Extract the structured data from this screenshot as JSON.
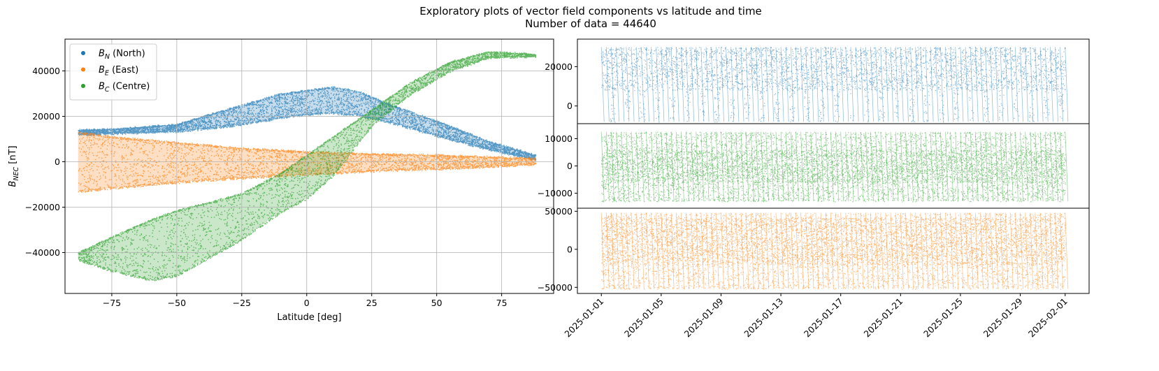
{
  "figure": {
    "title": "Exploratory plots of vector field components vs latitude and time",
    "subtitle": "Number of data = 44640"
  },
  "colors": {
    "north": "#1f77b4",
    "east": "#ff7f0e",
    "centre": "#2ca02c",
    "grid": "#b0b0b0"
  },
  "chart_data": [
    {
      "type": "scatter",
      "xlabel": "Latitude [deg]",
      "ylabel_main": "B",
      "ylabel_sub": "NEC",
      "ylabel_unit": " [nT]",
      "xlim": [
        -93,
        95
      ],
      "ylim": [
        -58000,
        54000
      ],
      "grid": true,
      "legend_position": "top-left",
      "xticks": [
        -75,
        -50,
        -25,
        0,
        25,
        50,
        75
      ],
      "xtick_labels": [
        "−75",
        "−50",
        "−25",
        "0",
        "25",
        "50",
        "75"
      ],
      "yticks": [
        -40000,
        -20000,
        0,
        20000,
        40000
      ],
      "ytick_labels": [
        "−40000",
        "−20000",
        "0",
        "20000",
        "40000"
      ],
      "series": [
        {
          "key": "north",
          "legend_main": "B",
          "legend_sub": "N",
          "legend_text": " (North)",
          "upper": [
            [
              -88,
              14000
            ],
            [
              -75,
              14500
            ],
            [
              -50,
              16500
            ],
            [
              -40,
              20000
            ],
            [
              -25,
              25000
            ],
            [
              -10,
              30000
            ],
            [
              0,
              31500
            ],
            [
              10,
              33000
            ],
            [
              20,
              31000
            ],
            [
              30,
              26000
            ],
            [
              50,
              18000
            ],
            [
              70,
              9000
            ],
            [
              88,
              3000
            ]
          ],
          "lower": [
            [
              -88,
              12000
            ],
            [
              -75,
              12500
            ],
            [
              -50,
              13500
            ],
            [
              -40,
              14500
            ],
            [
              -25,
              16500
            ],
            [
              -10,
              19500
            ],
            [
              0,
              21000
            ],
            [
              10,
              21500
            ],
            [
              20,
              20500
            ],
            [
              30,
              18000
            ],
            [
              50,
              11500
            ],
            [
              70,
              5500
            ],
            [
              88,
              1000
            ]
          ]
        },
        {
          "key": "east",
          "legend_main": "B",
          "legend_sub": "E",
          "legend_text": " (East)",
          "upper": [
            [
              -88,
              13000
            ],
            [
              -75,
              11000
            ],
            [
              -50,
              8500
            ],
            [
              -25,
              6000
            ],
            [
              0,
              4500
            ],
            [
              25,
              3500
            ],
            [
              50,
              3000
            ],
            [
              75,
              2000
            ],
            [
              88,
              1500
            ]
          ],
          "lower": [
            [
              -88,
              -13000
            ],
            [
              -75,
              -11500
            ],
            [
              -50,
              -9000
            ],
            [
              -25,
              -7000
            ],
            [
              0,
              -5500
            ],
            [
              25,
              -4000
            ],
            [
              50,
              -3000
            ],
            [
              75,
              -1800
            ],
            [
              88,
              -1000
            ]
          ]
        },
        {
          "key": "centre",
          "legend_main": "B",
          "legend_sub": "C",
          "legend_text": " (Centre)",
          "upper": [
            [
              -88,
              -40000
            ],
            [
              -75,
              -33000
            ],
            [
              -60,
              -25500
            ],
            [
              -50,
              -21500
            ],
            [
              -25,
              -14000
            ],
            [
              -10,
              -5000
            ],
            [
              0,
              3000
            ],
            [
              10,
              11000
            ],
            [
              25,
              23000
            ],
            [
              40,
              35000
            ],
            [
              55,
              44000
            ],
            [
              70,
              48500
            ],
            [
              88,
              47500
            ]
          ],
          "lower": [
            [
              -88,
              -43000
            ],
            [
              -75,
              -48000
            ],
            [
              -60,
              -52000
            ],
            [
              -50,
              -50000
            ],
            [
              -25,
              -34000
            ],
            [
              -10,
              -22000
            ],
            [
              0,
              -16000
            ],
            [
              10,
              -6000
            ],
            [
              25,
              16000
            ],
            [
              40,
              30000
            ],
            [
              55,
              40000
            ],
            [
              70,
              46000
            ],
            [
              88,
              46500
            ]
          ]
        }
      ]
    },
    {
      "type": "scatter",
      "series_key": "north",
      "ylim": [
        -9000,
        34000
      ],
      "yticks": [
        0,
        20000
      ],
      "ytick_labels": [
        "0",
        "20000"
      ],
      "band": [
        -8000,
        30000
      ],
      "dense": [
        8000,
        26000
      ],
      "dip_floor": -8000,
      "cycles": 31
    },
    {
      "type": "scatter",
      "series_key": "centre",
      "ylim": [
        -15500,
        15500
      ],
      "yticks": [
        -10000,
        0,
        10000
      ],
      "ytick_labels": [
        "−10000",
        "0",
        "10000"
      ],
      "band": [
        -13000,
        12500
      ],
      "dense": [
        -6000,
        6000
      ],
      "cycles": 31
    },
    {
      "type": "scatter",
      "series_key": "east",
      "ylim": [
        -58000,
        54000
      ],
      "yticks": [
        -50000,
        0,
        50000
      ],
      "ytick_labels": [
        "−50000",
        "0",
        "50000"
      ],
      "band": [
        -52000,
        48000
      ],
      "dense": [
        -20000,
        42000
      ],
      "cycles": 31
    }
  ],
  "time_axis": {
    "x_range": [
      "2025-01-01",
      "2025-02-01"
    ],
    "xlim_days": [
      -1.6,
      32.6
    ],
    "ticks": [
      {
        "day": 0,
        "label": "2025-01-01"
      },
      {
        "day": 4,
        "label": "2025-01-05"
      },
      {
        "day": 8,
        "label": "2025-01-09"
      },
      {
        "day": 12,
        "label": "2025-01-13"
      },
      {
        "day": 16,
        "label": "2025-01-17"
      },
      {
        "day": 20,
        "label": "2025-01-21"
      },
      {
        "day": 24,
        "label": "2025-01-25"
      },
      {
        "day": 28,
        "label": "2025-01-29"
      },
      {
        "day": 31,
        "label": "2025-02-01"
      }
    ]
  }
}
